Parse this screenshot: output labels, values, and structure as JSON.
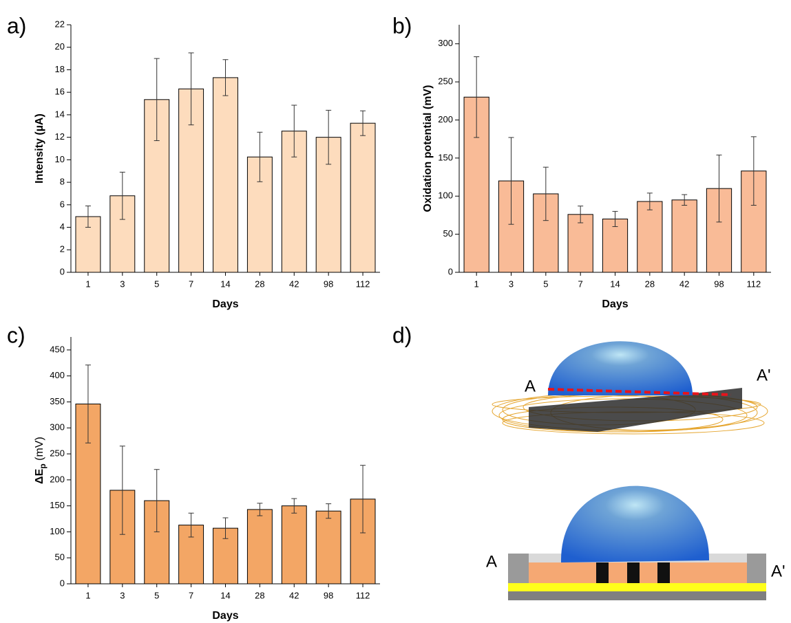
{
  "chart_data": [
    {
      "type": "bar",
      "panel_label": "a)",
      "xlabel": "Days",
      "ylabel": "Intensity (µA)",
      "categories": [
        "1",
        "3",
        "5",
        "7",
        "14",
        "28",
        "42",
        "98",
        "112"
      ],
      "values": [
        4.95,
        6.8,
        15.35,
        16.3,
        17.3,
        10.25,
        12.55,
        12.0,
        13.25
      ],
      "errors": [
        0.95,
        2.1,
        3.65,
        3.2,
        1.6,
        2.2,
        2.3,
        2.4,
        1.1
      ],
      "color": "#fddcbd",
      "ylim": [
        0,
        22
      ],
      "yticks": [
        0,
        2,
        4,
        6,
        8,
        10,
        12,
        14,
        16,
        18,
        20,
        22
      ]
    },
    {
      "type": "bar",
      "panel_label": "b)",
      "xlabel": "Days",
      "ylabel": "Oxidation potential (mV)",
      "categories": [
        "1",
        "3",
        "5",
        "7",
        "14",
        "28",
        "42",
        "98",
        "112"
      ],
      "values": [
        230,
        120,
        103,
        76,
        70,
        93,
        95,
        110,
        133
      ],
      "errors": [
        53,
        57,
        35,
        11,
        10,
        11,
        7,
        44,
        45
      ],
      "color": "#f9bb97",
      "ylim": [
        0,
        325
      ],
      "yticks": [
        0,
        50,
        100,
        150,
        200,
        250,
        300
      ]
    },
    {
      "type": "bar",
      "panel_label": "c)",
      "xlabel": "Days",
      "ylabel_parts": [
        "ΔE",
        "p",
        " (mV)"
      ],
      "categories": [
        "1",
        "3",
        "5",
        "7",
        "14",
        "28",
        "42",
        "98",
        "112"
      ],
      "values": [
        346,
        180,
        160,
        113,
        107,
        143,
        150,
        140,
        163
      ],
      "errors": [
        75,
        85,
        60,
        23,
        20,
        12,
        14,
        14,
        65
      ],
      "color": "#f3a665",
      "ylim": [
        0,
        475
      ],
      "yticks": [
        0,
        50,
        100,
        150,
        200,
        250,
        300,
        350,
        400,
        450
      ]
    }
  ],
  "diagram": {
    "panel_label": "d)",
    "top_labels": [
      "A",
      "A'"
    ],
    "section_labels": [
      "A",
      "A'"
    ]
  }
}
